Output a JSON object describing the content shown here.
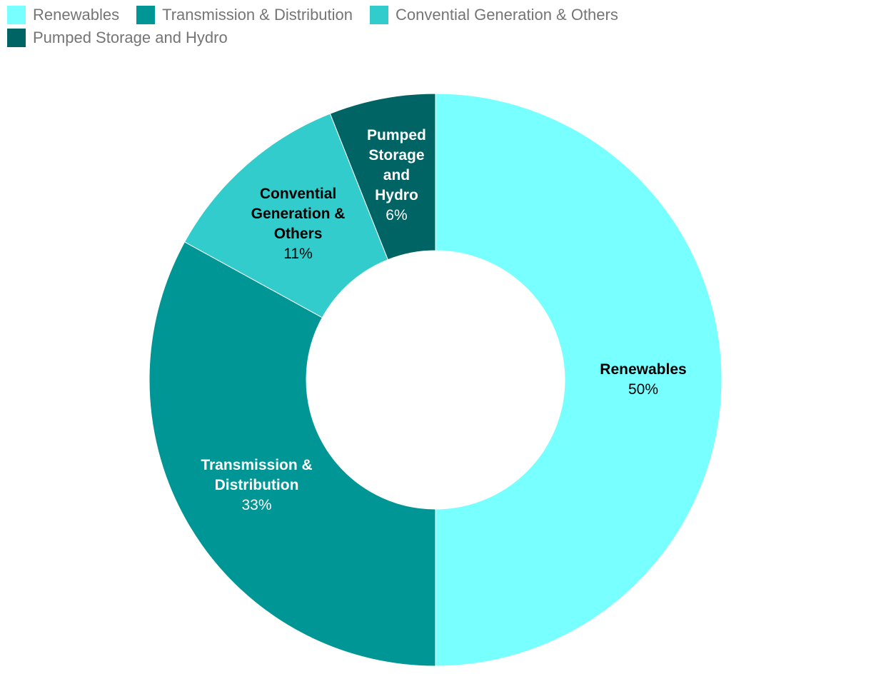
{
  "chart_data": {
    "type": "donut",
    "categories": [
      "Renewables",
      "Transmission & Distribution",
      "Convential Generation & Others",
      "Pumped Storage and Hydro"
    ],
    "values": [
      50,
      33,
      11,
      6
    ],
    "value_labels": [
      "50%",
      "33%",
      "11%",
      "6%"
    ],
    "colors": [
      "#78ffff",
      "#009696",
      "#33cccc",
      "#006464"
    ],
    "legend": "top-left"
  }
}
